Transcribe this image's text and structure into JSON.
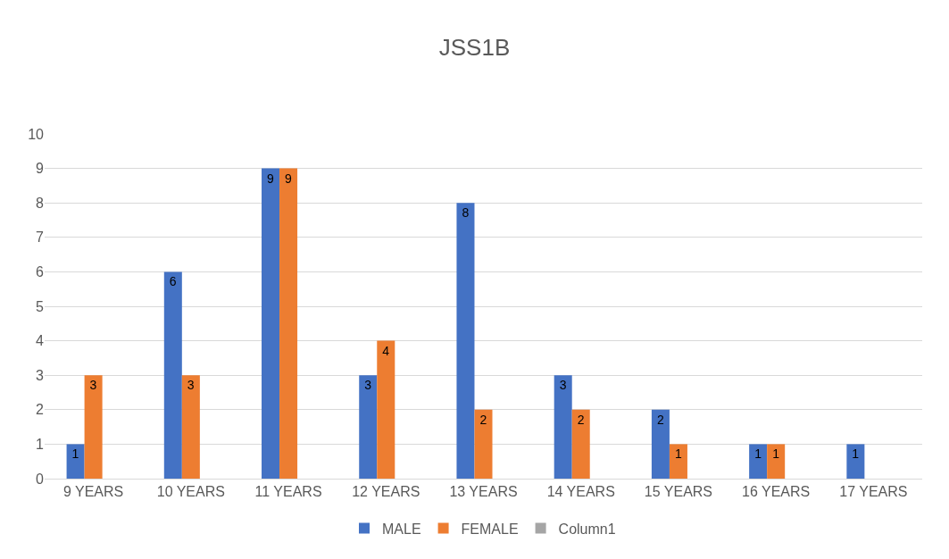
{
  "chart_data": {
    "type": "bar",
    "title": "JSS1B",
    "categories": [
      "9 YEARS",
      "10 YEARS",
      "11 YEARS",
      "12 YEARS",
      "13 YEARS",
      "14 YEARS",
      "15 YEARS",
      "16 YEARS",
      "17 YEARS"
    ],
    "series": [
      {
        "name": "MALE",
        "color": "#4472c4",
        "values": [
          1,
          6,
          9,
          3,
          8,
          3,
          2,
          1,
          1
        ]
      },
      {
        "name": "FEMALE",
        "color": "#ed7d31",
        "values": [
          3,
          3,
          9,
          4,
          2,
          2,
          1,
          1,
          null
        ]
      },
      {
        "name": "Column1",
        "color": "#a5a5a5",
        "values": [
          null,
          null,
          null,
          null,
          null,
          null,
          null,
          null,
          null
        ]
      }
    ],
    "ylim": [
      0,
      10
    ],
    "yticks": [
      0,
      1,
      2,
      3,
      4,
      5,
      6,
      7,
      8,
      9,
      10
    ],
    "grid": "y",
    "legend": "bottom",
    "data_labels": true
  }
}
